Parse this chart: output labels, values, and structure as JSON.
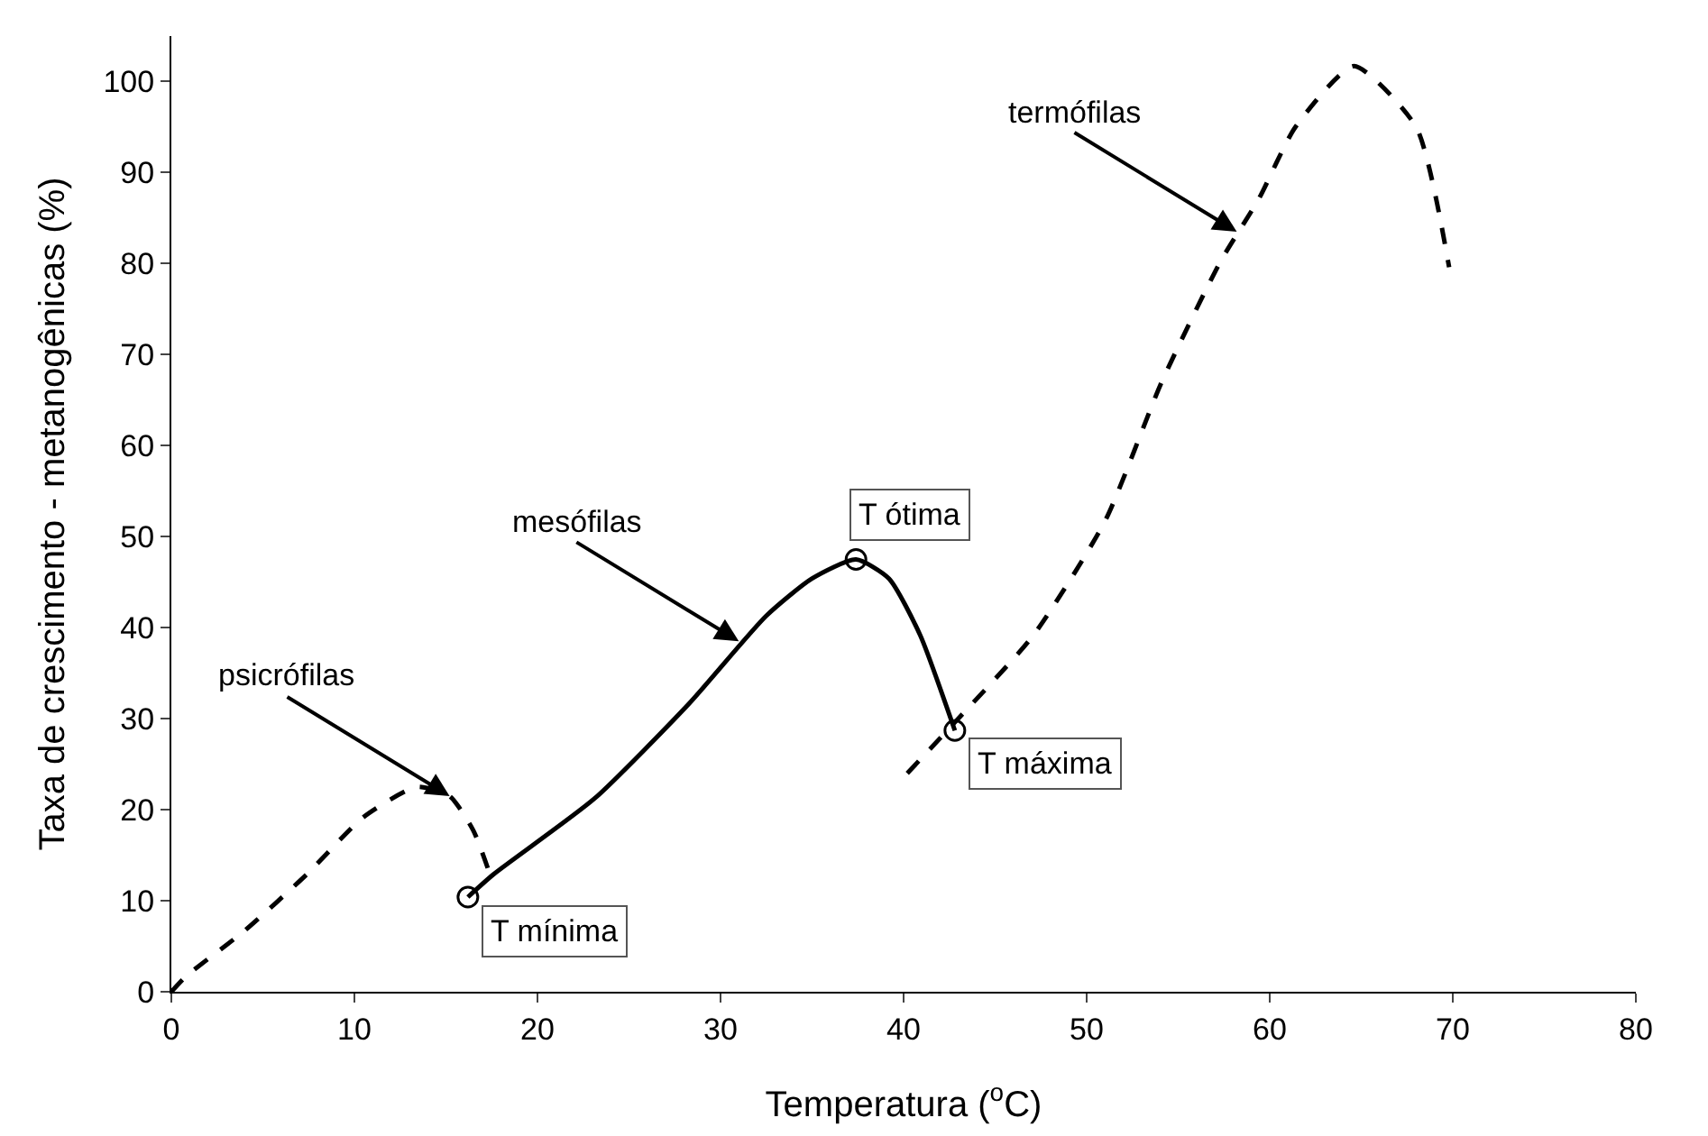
{
  "chart_data": {
    "type": "line",
    "xlabel": "Temperatura ($^{o}$C)",
    "ylabel": "Taxa de crescimento - metanogênicas (%)",
    "xlim": [
      0,
      80
    ],
    "xticks": [
      0,
      10,
      20,
      30,
      40,
      50,
      60,
      70,
      80
    ],
    "ylim": [
      0,
      105
    ],
    "yticks": [
      0,
      10,
      20,
      30,
      40,
      50,
      60,
      70,
      80,
      90,
      100
    ],
    "marker": "none",
    "series": [
      {
        "color": "#000000",
        "line_style": "dashed",
        "x": [
          0,
          0.8,
          4,
          7.4,
          10.5,
          13.4,
          15.2,
          16.5,
          17.3
        ],
        "values": [
          0,
          1.7,
          6.7,
          12.9,
          19.2,
          22.5,
          21.5,
          17.7,
          13.5
        ]
      },
      {
        "color": "#000000",
        "line_style": "solid",
        "x": [
          16.2,
          17.6,
          23.1,
          28.3,
          32.5,
          35,
          37.4,
          39.2,
          40.9,
          42.8
        ],
        "values": [
          10.4,
          12.9,
          21.2,
          31.7,
          41.3,
          45.4,
          47.5,
          45.4,
          39.2,
          28.7
        ]
      },
      {
        "color": "#000000",
        "line_style": "dashed",
        "x": [
          40.2,
          42.8,
          47.1,
          51,
          54.1,
          57.3,
          59.4,
          61.4,
          64.6,
          68,
          69.8
        ],
        "values": [
          24,
          29.6,
          39.2,
          51.7,
          67,
          80.2,
          87.1,
          95,
          101.7,
          95,
          79.6
        ]
      },
      {
        "type": "scatter",
        "marker": "circle",
        "color": "#000000",
        "x": [
          16.2,
          37.4,
          42.8
        ],
        "values": [
          10.4,
          47.5,
          28.7
        ]
      }
    ],
    "annotations": [
      {
        "text": "psicrófilas",
        "x": 15.2,
        "y": 21.5
      },
      {
        "text": "mesófilas",
        "x": 31,
        "y": 38.5
      },
      {
        "text": "termófilas",
        "x": 58.2,
        "y": 83.5
      },
      {
        "text": "T mínima",
        "x": 16.2,
        "y": 10.4
      },
      {
        "text": "T ótima",
        "x": 37.4,
        "y": 47.5
      },
      {
        "text": "T máxima",
        "x": 42.8,
        "y": 28.7
      }
    ]
  }
}
